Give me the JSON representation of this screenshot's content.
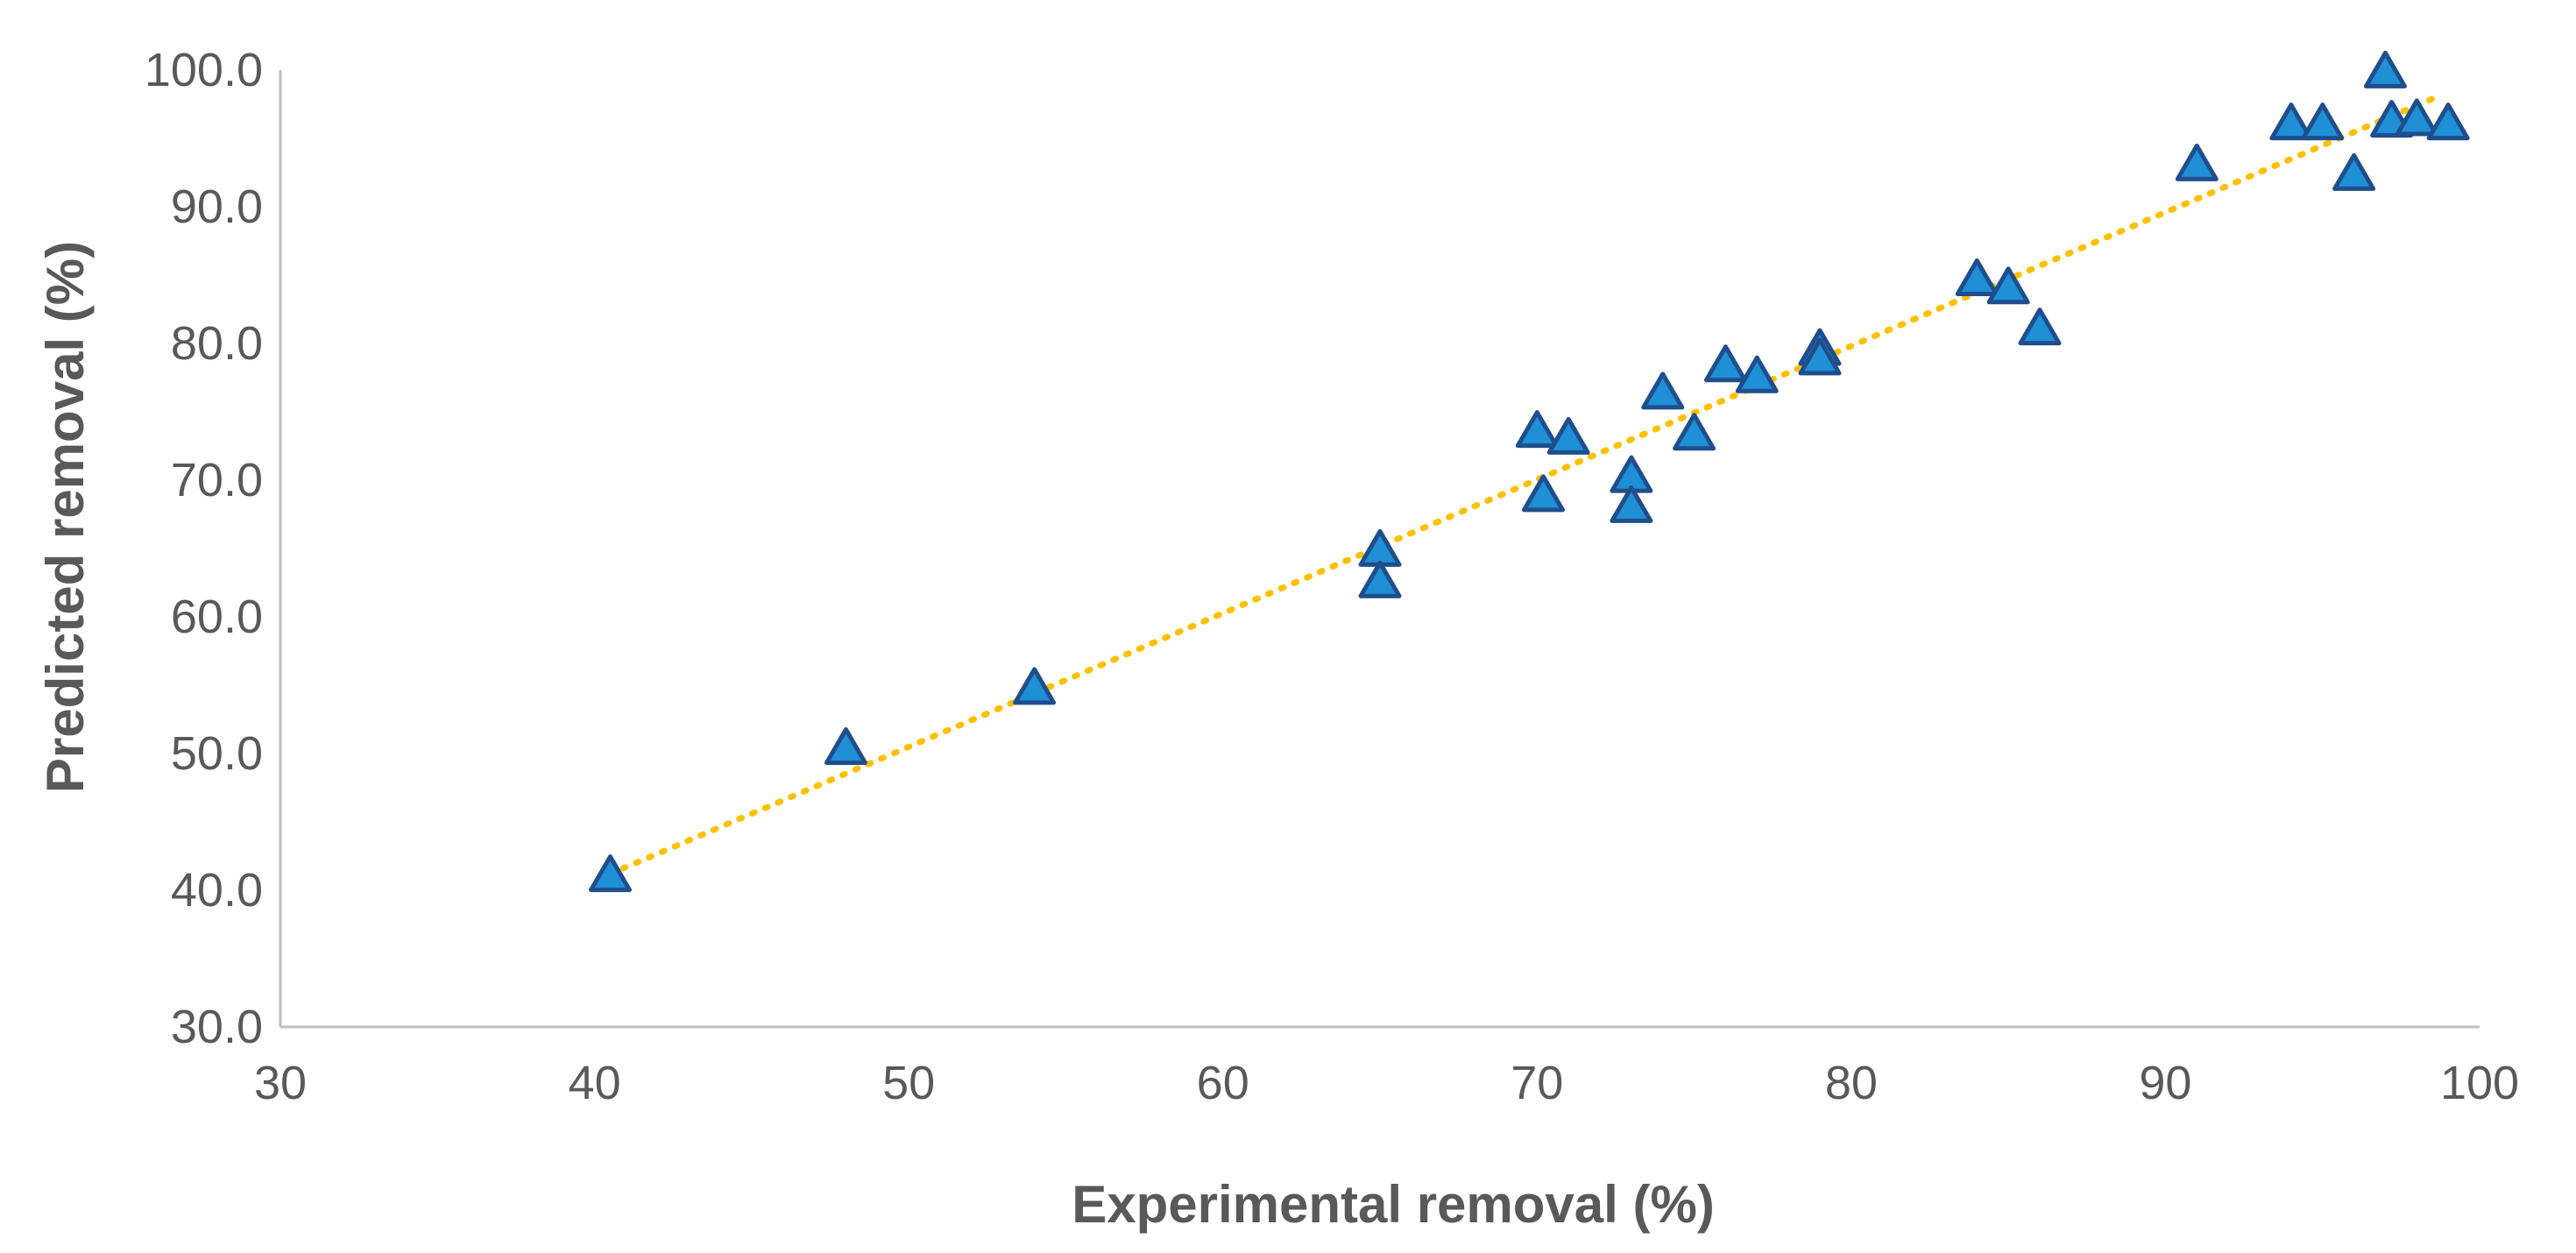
{
  "chart_data": {
    "type": "scatter",
    "title": "",
    "xlabel": "Experimental removal (%)",
    "ylabel": "Predicted removal (%)",
    "xlim": [
      30,
      100
    ],
    "ylim": [
      30,
      100
    ],
    "x_ticks": [
      "30",
      "40",
      "50",
      "60",
      "70",
      "80",
      "90",
      "100"
    ],
    "y_ticks": [
      "30.0",
      "40.0",
      "50.0",
      "60.0",
      "70.0",
      "80.0",
      "90.0",
      "100.0"
    ],
    "grid": false,
    "legend": "none",
    "series": [
      {
        "marker": "triangle",
        "color": "#1f8fd6",
        "edge_color": "#1f4e8c",
        "points": [
          [
            40.5,
            41.0
          ],
          [
            48.0,
            50.3
          ],
          [
            54.0,
            54.7
          ],
          [
            65.0,
            64.8
          ],
          [
            65.0,
            62.5
          ],
          [
            70.0,
            73.5
          ],
          [
            70.2,
            68.8
          ],
          [
            71.0,
            73.0
          ],
          [
            73.0,
            70.2
          ],
          [
            73.0,
            68.0
          ],
          [
            74.0,
            76.3
          ],
          [
            75.0,
            73.3
          ],
          [
            76.0,
            78.3
          ],
          [
            77.0,
            77.5
          ],
          [
            79.0,
            79.5
          ],
          [
            79.0,
            78.8
          ],
          [
            84.0,
            84.6
          ],
          [
            85.0,
            84.0
          ],
          [
            86.0,
            81.0
          ],
          [
            91.0,
            93.0
          ],
          [
            94.0,
            96.0
          ],
          [
            95.0,
            96.0
          ],
          [
            96.0,
            92.3
          ],
          [
            97.0,
            99.8
          ],
          [
            97.2,
            96.2
          ],
          [
            98.0,
            96.3
          ],
          [
            99.0,
            96.0
          ]
        ]
      }
    ],
    "trendline": {
      "style": "dotted",
      "color": "#ffc000",
      "from": [
        40.5,
        41.2
      ],
      "to": [
        98.8,
        98.2
      ]
    }
  }
}
